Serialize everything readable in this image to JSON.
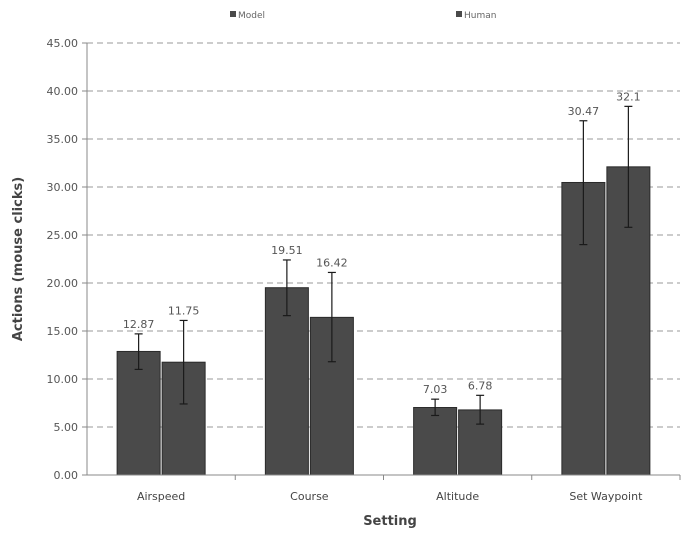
{
  "chart_data": {
    "type": "bar",
    "categories": [
      "Airspeed",
      "Course",
      "Altitude",
      "Set Waypoint"
    ],
    "series": [
      {
        "name": "Model",
        "values": [
          12.87,
          19.51,
          7.03,
          30.47
        ],
        "labels": [
          "12.87",
          "19.51",
          "7.03",
          "30.47"
        ],
        "error_low": [
          11.0,
          16.6,
          6.2,
          24.0
        ],
        "error_high": [
          14.7,
          22.4,
          7.9,
          36.9
        ],
        "color": "#4a4a4a"
      },
      {
        "name": "Human",
        "values": [
          11.75,
          16.42,
          6.78,
          32.1
        ],
        "labels": [
          "11.75",
          "16.42",
          "6.78",
          "32.1"
        ],
        "error_low": [
          7.4,
          11.8,
          5.3,
          25.8
        ],
        "error_high": [
          16.1,
          21.1,
          8.3,
          38.4
        ],
        "color": "#4a4a4a"
      }
    ],
    "xlabel": "Setting",
    "ylabel": "Actions (mouse clicks)",
    "ylim": [
      0,
      45
    ],
    "yticks": [
      "0.00",
      "5.00",
      "10.00",
      "15.00",
      "20.00",
      "25.00",
      "30.00",
      "35.00",
      "40.00",
      "45.00"
    ],
    "grid": true,
    "legend_position": "top"
  }
}
